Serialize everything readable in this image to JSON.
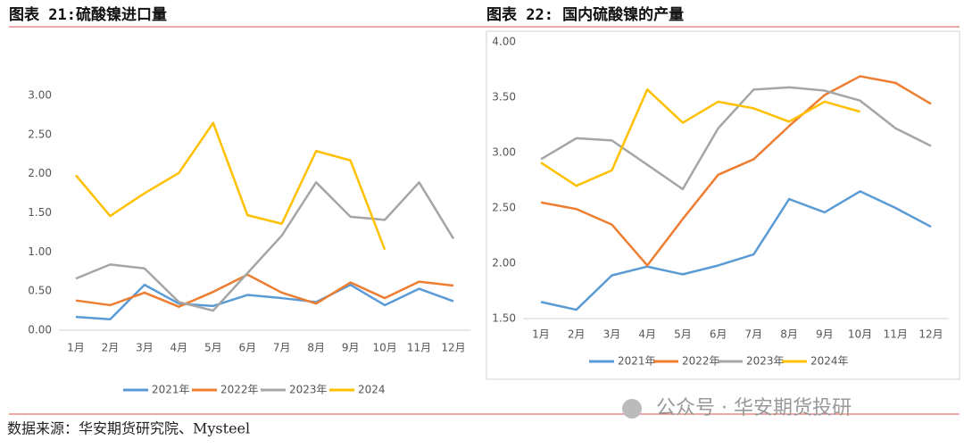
{
  "chart_data": [
    {
      "type": "line",
      "title": "图表 21:硫酸镍进口量",
      "categories": [
        "1月",
        "2月",
        "3月",
        "4月",
        "5月",
        "6月",
        "7月",
        "8月",
        "9月",
        "10月",
        "11月",
        "12月"
      ],
      "ylim": [
        0,
        3
      ],
      "yticks": [
        {
          "value": 0,
          "label": "0.00"
        },
        {
          "value": 0.5,
          "label": "0.50"
        },
        {
          "value": 1,
          "label": "1.00"
        },
        {
          "value": 1.5,
          "label": "1.50"
        },
        {
          "value": 2,
          "label": "2.00"
        },
        {
          "value": 2.5,
          "label": "2.50"
        },
        {
          "value": 3,
          "label": "3.00"
        }
      ],
      "legend": "bottom",
      "series": [
        {
          "name": "2021年",
          "color": "#5b9bd5",
          "values": [
            0.17,
            0.14,
            0.58,
            0.34,
            0.31,
            0.45,
            0.41,
            0.36,
            0.58,
            0.32,
            0.53,
            0.37
          ]
        },
        {
          "name": "2022年",
          "color": "#ed7d31",
          "values": [
            0.38,
            0.32,
            0.48,
            0.3,
            0.49,
            0.71,
            0.48,
            0.34,
            0.61,
            0.41,
            0.62,
            0.57
          ]
        },
        {
          "name": "2023年",
          "color": "#a5a5a5",
          "values": [
            0.66,
            0.84,
            0.79,
            0.36,
            0.25,
            0.73,
            1.21,
            1.89,
            1.45,
            1.41,
            1.89,
            1.17
          ]
        },
        {
          "name": "2024",
          "color": "#ffc000",
          "values": [
            1.98,
            1.46,
            1.75,
            2.01,
            2.65,
            1.47,
            1.36,
            2.29,
            2.17,
            1.03,
            null,
            null
          ]
        }
      ]
    },
    {
      "type": "line",
      "title": "图表 22: 国内硫酸镍的产量",
      "categories": [
        "1月",
        "2月",
        "3月",
        "4月",
        "5月",
        "6月",
        "7月",
        "8月",
        "9月",
        "10月",
        "11月",
        "12月"
      ],
      "ylim": [
        1.5,
        4
      ],
      "yticks": [
        {
          "value": 1.5,
          "label": "1.50"
        },
        {
          "value": 2,
          "label": "2.00"
        },
        {
          "value": 2.5,
          "label": "2.50"
        },
        {
          "value": 3,
          "label": "3.00"
        },
        {
          "value": 3.5,
          "label": "3.50"
        },
        {
          "value": 4,
          "label": "4.00"
        }
      ],
      "legend": "bottom",
      "series": [
        {
          "name": "2021年",
          "color": "#5b9bd5",
          "values": [
            1.65,
            1.58,
            1.89,
            1.97,
            1.9,
            1.98,
            2.08,
            2.58,
            2.46,
            2.65,
            2.5,
            2.33
          ]
        },
        {
          "name": "2022年",
          "color": "#ed7d31",
          "values": [
            2.55,
            2.49,
            2.35,
            1.98,
            2.4,
            2.8,
            2.94,
            3.24,
            3.52,
            3.69,
            3.63,
            3.44
          ]
        },
        {
          "name": "2023年",
          "color": "#a5a5a5",
          "values": [
            2.94,
            3.13,
            3.11,
            2.89,
            2.67,
            3.22,
            3.57,
            3.59,
            3.56,
            3.47,
            3.22,
            3.06
          ]
        },
        {
          "name": "2024年",
          "color": "#ffc000",
          "values": [
            2.91,
            2.7,
            2.84,
            3.57,
            3.27,
            3.46,
            3.4,
            3.28,
            3.46,
            3.37,
            null,
            null
          ]
        }
      ]
    }
  ],
  "source": "数据来源：华安期货研究院、Mysteel",
  "watermark": "公众号 · 华安期货投研"
}
